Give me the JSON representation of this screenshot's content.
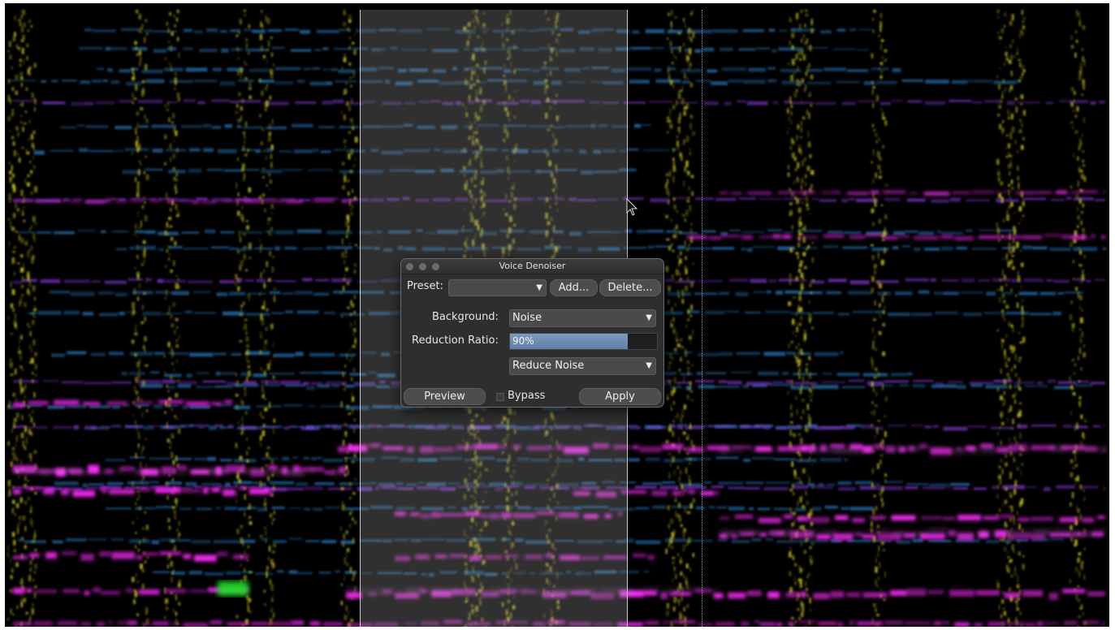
{
  "dialog": {
    "title": "Voice Denoiser",
    "preset": {
      "label": "Preset:",
      "value": "",
      "add_label": "Add...",
      "delete_label": "Delete..."
    },
    "background": {
      "label": "Background:",
      "value": "Noise"
    },
    "reduction": {
      "label": "Reduction Ratio:",
      "value_text": "90%",
      "value": 0.9
    },
    "mode": {
      "value": "Reduce Noise"
    },
    "preview_label": "Preview",
    "bypass_label": "Bypass",
    "bypass_checked": false,
    "apply_label": "Apply"
  },
  "colors": {
    "accent": "#6f8fb6",
    "spectro_magenta": "#ff2bff",
    "spectro_yellow": "#c8c020",
    "spectro_blue": "#2a7fc8",
    "spectro_violet": "#a040ff"
  },
  "icons": {
    "cursor": "arrow-pointer-icon",
    "dropdown": "chevron-down-icon"
  }
}
